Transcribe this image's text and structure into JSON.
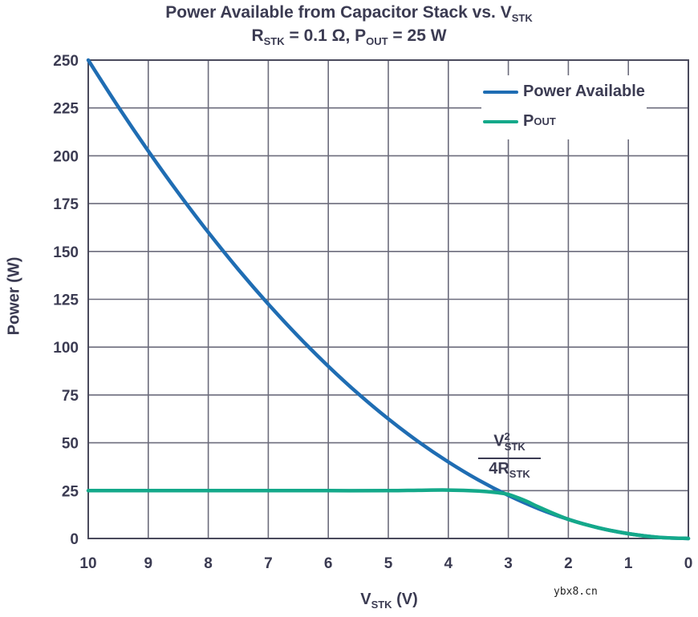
{
  "chart_data": {
    "type": "line",
    "title_line1": {
      "text": "Power Available from Capacitor Stack vs. V",
      "sub": "STK"
    },
    "title_line2": {
      "r": "R",
      "r_sub": "STK",
      "r_val": " = 0.1 Ω, ",
      "p": "P",
      "p_sub": "OUT",
      "p_val": " = 25 W"
    },
    "xlabel": {
      "main": "V",
      "sub": "STK",
      "unit": " (V)"
    },
    "ylabel": "Power (W)",
    "xlim": [
      10,
      0
    ],
    "ylim": [
      0,
      250
    ],
    "x_ticks": [
      "10",
      "9",
      "8",
      "7",
      "6",
      "5",
      "4",
      "3",
      "2",
      "1",
      "0"
    ],
    "y_ticks": [
      "250",
      "225",
      "200",
      "175",
      "150",
      "125",
      "100",
      "75",
      "50",
      "25",
      "0"
    ],
    "grid": true,
    "legend_position": "top-right",
    "series": [
      {
        "name": "Power Available",
        "color": "#1f6db3",
        "x": [
          10,
          9.5,
          9,
          8.5,
          8,
          7.5,
          7,
          6.5,
          6,
          5.5,
          5,
          4.5,
          4,
          3.5,
          3,
          2.5,
          2,
          1.5,
          1,
          0.5,
          0
        ],
        "y": [
          250,
          225.6,
          202.5,
          180.6,
          160,
          140.6,
          122.5,
          105.6,
          90,
          75.6,
          62.5,
          50.6,
          40,
          30.6,
          22.5,
          15.6,
          10,
          5.6,
          2.5,
          0.6,
          0
        ]
      },
      {
        "name": "P",
        "name_sub": "OUT",
        "color": "#14a98a",
        "x": [
          10,
          9,
          8,
          7,
          6,
          5,
          4.5,
          4,
          3.5,
          3.2,
          3,
          2.7,
          2.5,
          2,
          1.5,
          1,
          0.5,
          0
        ],
        "y": [
          25,
          25,
          25,
          25,
          25,
          25,
          25.2,
          25.3,
          24.8,
          24,
          23,
          19.5,
          16.5,
          10,
          5.6,
          2.5,
          0.6,
          0
        ]
      }
    ],
    "annotation": {
      "num": "V",
      "num_sup": "2",
      "num_sub": "STK",
      "den": "4R",
      "den_sub": "STK"
    }
  },
  "watermark": "ybx8.cn"
}
